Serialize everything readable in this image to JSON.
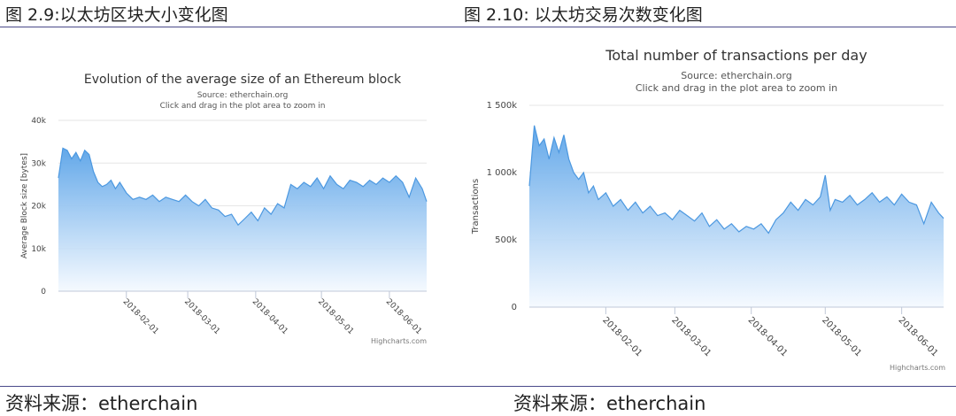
{
  "figures": {
    "left_title": "图 2.9:以太坊区块大小变化图",
    "right_title": "图 2.10: 以太坊交易次数变化图",
    "left_source": "资料来源：etherchain",
    "right_source": "资料来源：etherchain"
  },
  "colors": {
    "rule": "#4a4a8a",
    "area_top": "#5aa3e8",
    "area_bottom": "#f4f9ff",
    "line": "#4c98e0",
    "grid": "#e6e6e6"
  },
  "chart_data": [
    {
      "type": "area",
      "title": "Evolution of the average size of an Ethereum block",
      "subtitle": "Source: etherchain.org",
      "subtitle2": "Click and drag in the plot area to zoom in",
      "ylabel": "Average Block size [bytes]",
      "ylim": [
        0,
        40000
      ],
      "yticks": [
        {
          "value": 0,
          "label": "0"
        },
        {
          "value": 10000,
          "label": "10k"
        },
        {
          "value": 20000,
          "label": "20k"
        },
        {
          "value": 30000,
          "label": "30k"
        },
        {
          "value": 40000,
          "label": "40k"
        }
      ],
      "xlim": [
        "2018-01-01",
        "2018-06-18"
      ],
      "xticks": [
        "2018-02-01",
        "2018-03-01",
        "2018-04-01",
        "2018-05-01",
        "2018-06-01"
      ],
      "credit": "Highcharts.com",
      "x": [
        "2018-01-01",
        "2018-01-03",
        "2018-01-05",
        "2018-01-07",
        "2018-01-09",
        "2018-01-11",
        "2018-01-13",
        "2018-01-15",
        "2018-01-17",
        "2018-01-19",
        "2018-01-21",
        "2018-01-23",
        "2018-01-25",
        "2018-01-27",
        "2018-01-29",
        "2018-02-01",
        "2018-02-04",
        "2018-02-07",
        "2018-02-10",
        "2018-02-13",
        "2018-02-16",
        "2018-02-19",
        "2018-02-22",
        "2018-02-25",
        "2018-02-28",
        "2018-03-03",
        "2018-03-06",
        "2018-03-09",
        "2018-03-12",
        "2018-03-15",
        "2018-03-18",
        "2018-03-21",
        "2018-03-24",
        "2018-03-27",
        "2018-03-30",
        "2018-04-02",
        "2018-04-05",
        "2018-04-08",
        "2018-04-11",
        "2018-04-14",
        "2018-04-17",
        "2018-04-20",
        "2018-04-23",
        "2018-04-26",
        "2018-04-29",
        "2018-05-02",
        "2018-05-05",
        "2018-05-08",
        "2018-05-11",
        "2018-05-14",
        "2018-05-17",
        "2018-05-20",
        "2018-05-23",
        "2018-05-26",
        "2018-05-29",
        "2018-06-01",
        "2018-06-04",
        "2018-06-07",
        "2018-06-10",
        "2018-06-13",
        "2018-06-16",
        "2018-06-18"
      ],
      "values": [
        26500,
        33500,
        33000,
        31000,
        32500,
        30500,
        33000,
        32000,
        28000,
        25500,
        24500,
        25000,
        26000,
        24000,
        25500,
        23000,
        21500,
        22000,
        21500,
        22500,
        21000,
        22000,
        21500,
        21000,
        22500,
        21000,
        20000,
        21500,
        19500,
        19000,
        17500,
        18000,
        15500,
        17000,
        18500,
        16500,
        19500,
        18000,
        20500,
        19500,
        25000,
        24000,
        25500,
        24500,
        26500,
        24000,
        27000,
        25000,
        24000,
        26000,
        25500,
        24500,
        26000,
        25000,
        26500,
        25500,
        27000,
        25500,
        22000,
        26500,
        24000,
        21000
      ]
    },
    {
      "type": "area",
      "title": "Total number of transactions per day",
      "subtitle": "Source: etherchain.org",
      "subtitle2": "Click and drag in the plot area to zoom in",
      "ylabel": "Transactions",
      "ylim": [
        0,
        1500000
      ],
      "yticks": [
        {
          "value": 0,
          "label": "0"
        },
        {
          "value": 500000,
          "label": "500k"
        },
        {
          "value": 1000000,
          "label": "1 000k"
        },
        {
          "value": 1500000,
          "label": "1 500k"
        }
      ],
      "xlim": [
        "2018-01-01",
        "2018-06-18"
      ],
      "xticks": [
        "2018-02-01",
        "2018-03-01",
        "2018-04-01",
        "2018-05-01",
        "2018-06-01"
      ],
      "credit": "Highcharts.com",
      "x": [
        "2018-01-01",
        "2018-01-03",
        "2018-01-05",
        "2018-01-07",
        "2018-01-09",
        "2018-01-11",
        "2018-01-13",
        "2018-01-15",
        "2018-01-17",
        "2018-01-19",
        "2018-01-21",
        "2018-01-23",
        "2018-01-25",
        "2018-01-27",
        "2018-01-29",
        "2018-02-01",
        "2018-02-04",
        "2018-02-07",
        "2018-02-10",
        "2018-02-13",
        "2018-02-16",
        "2018-02-19",
        "2018-02-22",
        "2018-02-25",
        "2018-02-28",
        "2018-03-03",
        "2018-03-06",
        "2018-03-09",
        "2018-03-12",
        "2018-03-15",
        "2018-03-18",
        "2018-03-21",
        "2018-03-24",
        "2018-03-27",
        "2018-03-30",
        "2018-04-02",
        "2018-04-05",
        "2018-04-08",
        "2018-04-11",
        "2018-04-14",
        "2018-04-17",
        "2018-04-20",
        "2018-04-23",
        "2018-04-26",
        "2018-04-29",
        "2018-05-01",
        "2018-05-03",
        "2018-05-05",
        "2018-05-08",
        "2018-05-11",
        "2018-05-14",
        "2018-05-17",
        "2018-05-20",
        "2018-05-23",
        "2018-05-26",
        "2018-05-29",
        "2018-06-01",
        "2018-06-04",
        "2018-06-07",
        "2018-06-10",
        "2018-06-13",
        "2018-06-16",
        "2018-06-18"
      ],
      "values": [
        900000,
        1350000,
        1200000,
        1250000,
        1100000,
        1260000,
        1150000,
        1280000,
        1100000,
        1000000,
        950000,
        1000000,
        850000,
        900000,
        800000,
        850000,
        750000,
        800000,
        720000,
        780000,
        700000,
        750000,
        680000,
        700000,
        650000,
        720000,
        680000,
        640000,
        700000,
        600000,
        650000,
        580000,
        620000,
        560000,
        600000,
        580000,
        620000,
        550000,
        650000,
        700000,
        780000,
        720000,
        800000,
        760000,
        820000,
        980000,
        720000,
        800000,
        780000,
        830000,
        760000,
        800000,
        850000,
        780000,
        820000,
        760000,
        840000,
        780000,
        760000,
        620000,
        780000,
        700000,
        660000
      ]
    }
  ]
}
